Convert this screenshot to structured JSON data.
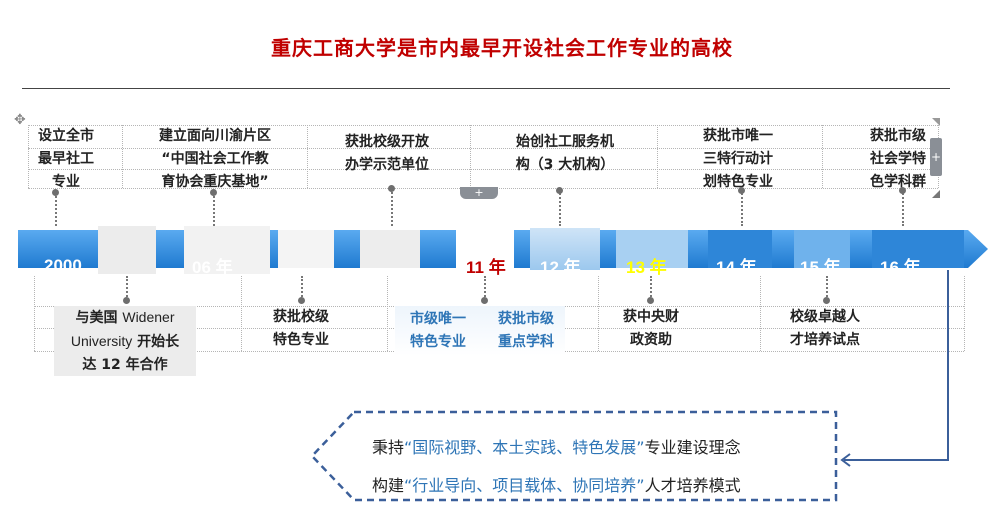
{
  "title": "重庆工商大学是市内最早开设社会工作专业的高校",
  "timeline": {
    "years": [
      {
        "label": "2000",
        "style": "white"
      },
      {
        "label": "06 年",
        "style": "white"
      },
      {
        "label": "11 年",
        "style": "red"
      },
      {
        "label": "12 年",
        "style": "white"
      },
      {
        "label": "13 年",
        "style": "yellow"
      },
      {
        "label": "14 年",
        "style": "white"
      },
      {
        "label": "15 年",
        "style": "white"
      },
      {
        "label": "16 年 …",
        "style": "white"
      }
    ],
    "top_events": [
      {
        "lines": [
          "设立全市",
          "最早社工",
          "专业"
        ]
      },
      {
        "lines": [
          "建立面向川渝片区",
          "“中国社会工作教",
          "育协会重庆基地”"
        ]
      },
      {
        "lines": [
          "获批校级开放",
          "办学示范单位"
        ]
      },
      {
        "lines": [
          "始创社工服务机",
          "构（3 大机构）"
        ]
      },
      {
        "lines": [
          "获批市唯一",
          "三特行动计",
          "划特色专业"
        ]
      },
      {
        "lines": [
          "获批市级",
          "社会学特",
          "色学科群"
        ]
      }
    ],
    "bottom_events": {
      "e1_line1_a": "与美国",
      "e1_line1_b": "Widener",
      "e1_line2_a": "University",
      "e1_line2_b": "开始长",
      "e1_line3": "达 12 年合作",
      "e2": [
        "获批校级",
        "特色专业"
      ],
      "e3": [
        "市级唯一",
        "特色专业"
      ],
      "e4": [
        "获批市级",
        "重点学科"
      ],
      "e5": [
        "获中央财",
        "政资助"
      ],
      "e6": [
        "校级卓越人",
        "才培养试点"
      ]
    }
  },
  "motto": {
    "line1_prefix": "秉持",
    "line1_quote": "“国际视野、本土实践、特色发展”",
    "line1_suffix": "专业建设理念",
    "line2_prefix": "构建",
    "line2_quote": "“行业导向、项目载体、协同培养”",
    "line2_suffix": "人才培养模式"
  },
  "controls": {
    "add": "+"
  },
  "colors": {
    "title": "#c00000",
    "arrow_blue": "#2e8ad8",
    "highlight": "#2e75b6"
  }
}
